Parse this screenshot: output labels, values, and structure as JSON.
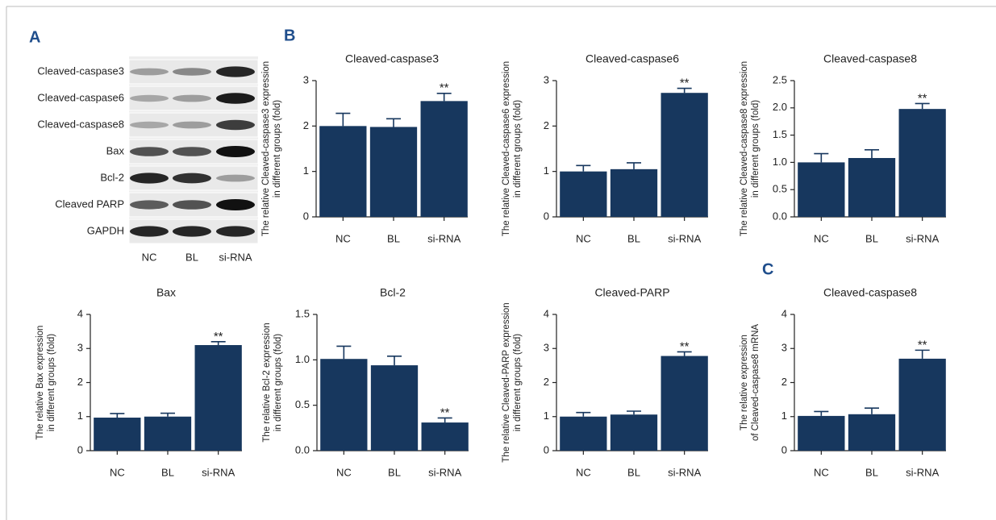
{
  "blot": {
    "panel_label": "A",
    "rows": [
      "Cleaved-caspase3",
      "Cleaved-caspase6",
      "Cleaved-caspase8",
      "Bax",
      "Bcl-2",
      "Cleaved PARP",
      "GAPDH"
    ],
    "lanes": [
      "NC",
      "BL",
      "si-RNA"
    ]
  },
  "chart_data": [
    {
      "type": "bar",
      "panel_label": "B",
      "title": "Cleaved-caspase3",
      "ylabel": [
        "The relative Cleaved-caspase3 expression",
        "in different groups (fold)"
      ],
      "categories": [
        "NC",
        "BL",
        "si-RNA"
      ],
      "values": [
        2.0,
        1.98,
        2.55
      ],
      "errors": [
        0.28,
        0.18,
        0.17
      ],
      "annotations": [
        null,
        null,
        "**"
      ],
      "color": "#17375e",
      "ylim": [
        0,
        3
      ],
      "yticks": [
        0,
        1,
        2,
        3
      ]
    },
    {
      "type": "bar",
      "title": "Cleaved-caspase6",
      "ylabel": [
        "The relative Cleaved-caspase6 expression",
        "in different groups (fold)"
      ],
      "categories": [
        "NC",
        "BL",
        "si-RNA"
      ],
      "values": [
        1.0,
        1.05,
        2.73
      ],
      "errors": [
        0.13,
        0.14,
        0.1
      ],
      "annotations": [
        null,
        null,
        "**"
      ],
      "color": "#17375e",
      "ylim": [
        0,
        3
      ],
      "yticks": [
        0,
        1,
        2,
        3
      ]
    },
    {
      "type": "bar",
      "title": "Cleaved-caspase8",
      "ylabel": [
        "The relative Cleaved-caspase8 expression",
        "in different groups (fold)"
      ],
      "categories": [
        "NC",
        "BL",
        "si-RNA"
      ],
      "values": [
        1.0,
        1.08,
        1.98
      ],
      "errors": [
        0.16,
        0.15,
        0.1
      ],
      "annotations": [
        null,
        null,
        "**"
      ],
      "color": "#17375e",
      "ylim": [
        0,
        2.5
      ],
      "yticks": [
        {
          "value": 0,
          "label": "0.0"
        },
        0.5,
        {
          "value": 1,
          "label": "1.0"
        },
        1.5,
        {
          "value": 2,
          "label": "2.0"
        },
        2.5
      ]
    },
    {
      "type": "bar",
      "title": "Bax",
      "ylabel": [
        "The relative Bax expression",
        "in different groups (fold)"
      ],
      "categories": [
        "NC",
        "BL",
        "si-RNA"
      ],
      "values": [
        0.97,
        1.0,
        3.1
      ],
      "errors": [
        0.12,
        0.1,
        0.1
      ],
      "annotations": [
        null,
        null,
        "**"
      ],
      "color": "#17375e",
      "ylim": [
        0,
        4
      ],
      "yticks": [
        0,
        1,
        2,
        3,
        4
      ]
    },
    {
      "type": "bar",
      "title": "Bcl-2",
      "ylabel": [
        "The relative Bcl-2 expression",
        "in different groups (fold)"
      ],
      "categories": [
        "NC",
        "BL",
        "si-RNA"
      ],
      "values": [
        1.01,
        0.94,
        0.31
      ],
      "errors": [
        0.14,
        0.1,
        0.05
      ],
      "annotations": [
        null,
        null,
        "**"
      ],
      "color": "#17375e",
      "ylim": [
        0,
        1.5
      ],
      "yticks": [
        {
          "value": 0,
          "label": "0.0"
        },
        0.5,
        {
          "value": 1,
          "label": "1.0"
        },
        1.5
      ]
    },
    {
      "type": "bar",
      "title": "Cleaved-PARP",
      "ylabel": [
        "The relative Cleaved-PARP expression",
        "in different groups (fold)"
      ],
      "categories": [
        "NC",
        "BL",
        "si-RNA"
      ],
      "values": [
        1.0,
        1.06,
        2.78
      ],
      "errors": [
        0.12,
        0.1,
        0.12
      ],
      "annotations": [
        null,
        null,
        "**"
      ],
      "color": "#17375e",
      "ylim": [
        0,
        4
      ],
      "yticks": [
        0,
        1,
        2,
        3,
        4
      ]
    },
    {
      "type": "bar",
      "panel_label": "C",
      "title": "Cleaved-caspase8",
      "ylabel": [
        "The relative expression",
        "of Cleaved-caspase8 mRNA"
      ],
      "categories": [
        "NC",
        "BL",
        "si-RNA"
      ],
      "values": [
        1.02,
        1.07,
        2.7
      ],
      "errors": [
        0.13,
        0.18,
        0.25
      ],
      "annotations": [
        null,
        null,
        "**"
      ],
      "color": "#17375e",
      "ylim": [
        0,
        4
      ],
      "yticks": [
        0,
        1,
        2,
        3,
        4
      ]
    }
  ]
}
